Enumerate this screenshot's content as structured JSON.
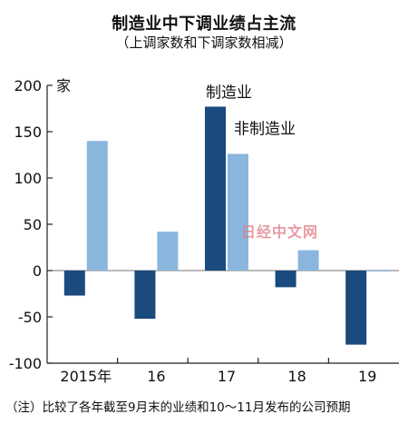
{
  "chart_data": {
    "type": "bar",
    "title": "制造业中下调业绩占主流",
    "subtitle": "（上调家数和下调家数相减）",
    "unit_label": "家",
    "categories": [
      "2015年",
      "16",
      "17",
      "18",
      "19"
    ],
    "series": [
      {
        "name": "制造业",
        "color": "#1a4a7e",
        "values": [
          -27,
          -52,
          177,
          -18,
          -80
        ]
      },
      {
        "name": "非制造业",
        "color": "#8ab6dd",
        "values": [
          140,
          42,
          126,
          22,
          0
        ]
      }
    ],
    "ylim": [
      -100,
      200
    ],
    "yticks": [
      200,
      150,
      100,
      50,
      0,
      -50,
      -100
    ],
    "grid": false,
    "legend": "direct labels near 2017 bars"
  },
  "footnote": "（注）比较了各年截至9月末的业绩和10～11月发布的公司预期",
  "watermark": "日经中文网"
}
